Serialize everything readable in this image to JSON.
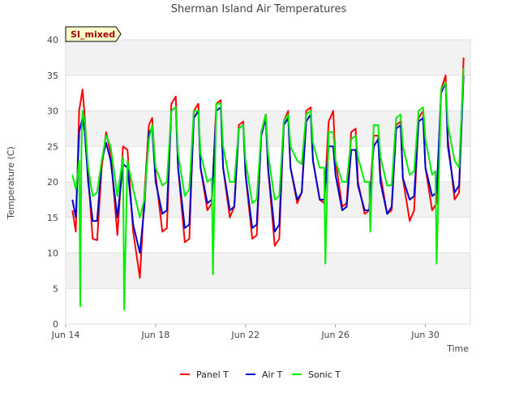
{
  "chart_data": {
    "type": "line",
    "title": "Sherman Island Air Temperatures",
    "xlabel": "Time",
    "ylabel": "Temperature (C)",
    "badge": "SI_mixed",
    "ylim": [
      0,
      40
    ],
    "yticks": [
      0,
      5,
      10,
      15,
      20,
      25,
      30,
      35,
      40
    ],
    "xlim": [
      14.0,
      32.0
    ],
    "xticks": [
      {
        "value": 14,
        "label": "Jun 14"
      },
      {
        "value": 18,
        "label": "Jun 18"
      },
      {
        "value": 22,
        "label": "Jun 22"
      },
      {
        "value": 26,
        "label": "Jun 26"
      },
      {
        "value": 30,
        "label": "Jun 30"
      }
    ],
    "grid": true,
    "legend_position": "bottom",
    "series": [
      {
        "name": "Panel T",
        "color": "#ff0000",
        "x": [
          14.3,
          14.45,
          14.6,
          14.75,
          14.85,
          15.0,
          15.2,
          15.4,
          15.6,
          15.8,
          16.0,
          16.3,
          16.55,
          16.75,
          17.0,
          17.3,
          17.5,
          17.7,
          17.85,
          18.0,
          18.3,
          18.5,
          18.7,
          18.9,
          19.0,
          19.3,
          19.5,
          19.7,
          19.9,
          20.0,
          20.3,
          20.5,
          20.7,
          20.9,
          21.0,
          21.3,
          21.5,
          21.7,
          21.9,
          22.0,
          22.3,
          22.5,
          22.7,
          22.9,
          23.0,
          23.3,
          23.5,
          23.7,
          23.9,
          24.0,
          24.3,
          24.5,
          24.7,
          24.9,
          25.0,
          25.3,
          25.5,
          25.7,
          25.9,
          26.0,
          26.3,
          26.5,
          26.7,
          26.9,
          27.0,
          27.3,
          27.5,
          27.7,
          27.9,
          28.0,
          28.3,
          28.5,
          28.7,
          28.9,
          29.0,
          29.3,
          29.5,
          29.7,
          29.9,
          30.0,
          30.3,
          30.5,
          30.7,
          30.9,
          31.0,
          31.3,
          31.5,
          31.7
        ],
        "y": [
          16.0,
          13.0,
          30.0,
          33.0,
          29.0,
          21.0,
          12.0,
          11.8,
          22.0,
          27.0,
          24.0,
          12.5,
          25.0,
          24.5,
          13.0,
          6.5,
          18.0,
          28.0,
          29.0,
          21.0,
          13.0,
          13.5,
          31.0,
          32.0,
          22.0,
          11.5,
          12.0,
          30.0,
          31.0,
          22.0,
          16.0,
          17.0,
          31.0,
          31.5,
          22.0,
          15.0,
          16.5,
          28.0,
          28.5,
          21.0,
          12.0,
          12.5,
          27.0,
          29.5,
          22.0,
          11.0,
          12.0,
          28.5,
          30.0,
          22.0,
          17.0,
          18.5,
          30.0,
          30.5,
          23.0,
          17.5,
          17.0,
          28.5,
          30.0,
          23.0,
          16.5,
          17.0,
          27.0,
          27.5,
          20.0,
          15.5,
          16.0,
          26.5,
          26.5,
          21.0,
          15.5,
          16.0,
          28.0,
          28.5,
          20.5,
          14.5,
          16.0,
          29.0,
          30.0,
          22.0,
          16.0,
          17.0,
          33.0,
          35.0,
          26.0,
          17.5,
          18.5,
          37.5
        ]
      },
      {
        "name": "Air T",
        "color": "#0000cc",
        "x": [
          14.3,
          14.45,
          14.6,
          14.75,
          14.85,
          15.0,
          15.2,
          15.4,
          15.6,
          15.8,
          16.0,
          16.3,
          16.55,
          16.75,
          17.0,
          17.3,
          17.5,
          17.7,
          17.85,
          18.0,
          18.3,
          18.5,
          18.7,
          18.9,
          19.0,
          19.3,
          19.5,
          19.7,
          19.9,
          20.0,
          20.3,
          20.5,
          20.7,
          20.9,
          21.0,
          21.3,
          21.5,
          21.7,
          21.9,
          22.0,
          22.3,
          22.5,
          22.7,
          22.9,
          23.0,
          23.3,
          23.5,
          23.7,
          23.9,
          24.0,
          24.3,
          24.5,
          24.7,
          24.9,
          25.0,
          25.3,
          25.5,
          25.7,
          25.9,
          26.0,
          26.3,
          26.5,
          26.7,
          26.9,
          27.0,
          27.3,
          27.5,
          27.7,
          27.9,
          28.0,
          28.3,
          28.5,
          28.7,
          28.9,
          29.0,
          29.3,
          29.5,
          29.7,
          29.9,
          30.0,
          30.3,
          30.5,
          30.7,
          30.9,
          31.0,
          31.3,
          31.5,
          31.7
        ],
        "y": [
          17.5,
          15.0,
          27.0,
          29.0,
          27.0,
          20.0,
          14.5,
          14.5,
          23.0,
          25.5,
          23.0,
          15.0,
          22.5,
          22.0,
          14.0,
          10.0,
          16.5,
          27.0,
          27.5,
          20.0,
          15.5,
          16.0,
          30.0,
          30.5,
          22.0,
          13.5,
          14.0,
          29.0,
          30.0,
          22.0,
          17.0,
          17.5,
          30.0,
          30.5,
          22.0,
          16.0,
          16.5,
          27.5,
          28.0,
          21.0,
          13.5,
          14.0,
          26.5,
          29.0,
          22.0,
          13.0,
          14.0,
          28.0,
          29.0,
          22.0,
          17.5,
          18.5,
          28.5,
          29.5,
          23.0,
          17.5,
          17.5,
          25.0,
          25.0,
          21.0,
          16.0,
          16.5,
          24.5,
          24.5,
          19.5,
          16.0,
          16.0,
          25.0,
          26.0,
          20.0,
          15.5,
          16.5,
          27.5,
          28.0,
          20.5,
          17.5,
          18.0,
          28.5,
          29.0,
          22.0,
          18.0,
          18.5,
          32.5,
          34.0,
          25.0,
          18.5,
          19.5,
          35.0
        ]
      },
      {
        "name": "Sonic T",
        "color": "#00ee00",
        "x": [
          14.3,
          14.45,
          14.6,
          14.65,
          14.7,
          14.75,
          14.85,
          15.0,
          15.2,
          15.4,
          15.6,
          15.8,
          16.0,
          16.3,
          16.55,
          16.6,
          16.75,
          17.0,
          17.3,
          17.5,
          17.7,
          17.85,
          18.0,
          18.3,
          18.5,
          18.7,
          18.9,
          19.0,
          19.3,
          19.5,
          19.7,
          19.9,
          20.0,
          20.3,
          20.5,
          20.55,
          20.7,
          20.9,
          21.0,
          21.3,
          21.5,
          21.7,
          21.9,
          22.0,
          22.3,
          22.5,
          22.7,
          22.9,
          23.0,
          23.3,
          23.5,
          23.7,
          23.9,
          24.0,
          24.3,
          24.5,
          24.7,
          24.9,
          25.0,
          25.3,
          25.5,
          25.55,
          25.7,
          25.9,
          26.0,
          26.3,
          26.5,
          26.7,
          26.9,
          27.0,
          27.3,
          27.5,
          27.55,
          27.7,
          27.9,
          28.0,
          28.3,
          28.5,
          28.7,
          28.9,
          29.0,
          29.3,
          29.5,
          29.7,
          29.9,
          30.0,
          30.3,
          30.45,
          30.5,
          30.7,
          30.9,
          31.0,
          31.3,
          31.5,
          31.7
        ],
        "y": [
          21.0,
          19.0,
          23.0,
          2.5,
          25.0,
          30.0,
          28.5,
          22.0,
          18.0,
          18.5,
          23.0,
          26.5,
          25.0,
          18.0,
          23.5,
          2.0,
          23.0,
          19.0,
          15.0,
          17.5,
          26.0,
          28.0,
          22.0,
          19.5,
          20.0,
          30.0,
          30.5,
          24.0,
          18.0,
          19.0,
          30.0,
          30.0,
          24.0,
          20.0,
          20.5,
          7.0,
          31.0,
          31.0,
          25.0,
          20.0,
          20.0,
          27.5,
          28.0,
          23.0,
          17.0,
          17.5,
          27.0,
          29.5,
          24.0,
          17.5,
          18.0,
          28.5,
          29.5,
          25.0,
          23.0,
          22.5,
          29.5,
          30.0,
          25.5,
          22.0,
          22.0,
          8.5,
          27.0,
          27.0,
          23.0,
          20.0,
          20.0,
          26.0,
          26.5,
          23.5,
          20.0,
          20.0,
          13.0,
          28.0,
          28.0,
          23.5,
          19.5,
          19.5,
          29.0,
          29.5,
          25.0,
          21.0,
          21.5,
          30.0,
          30.5,
          26.0,
          21.0,
          21.5,
          8.5,
          33.0,
          34.0,
          28.0,
          23.0,
          22.0,
          36.0
        ]
      }
    ]
  }
}
